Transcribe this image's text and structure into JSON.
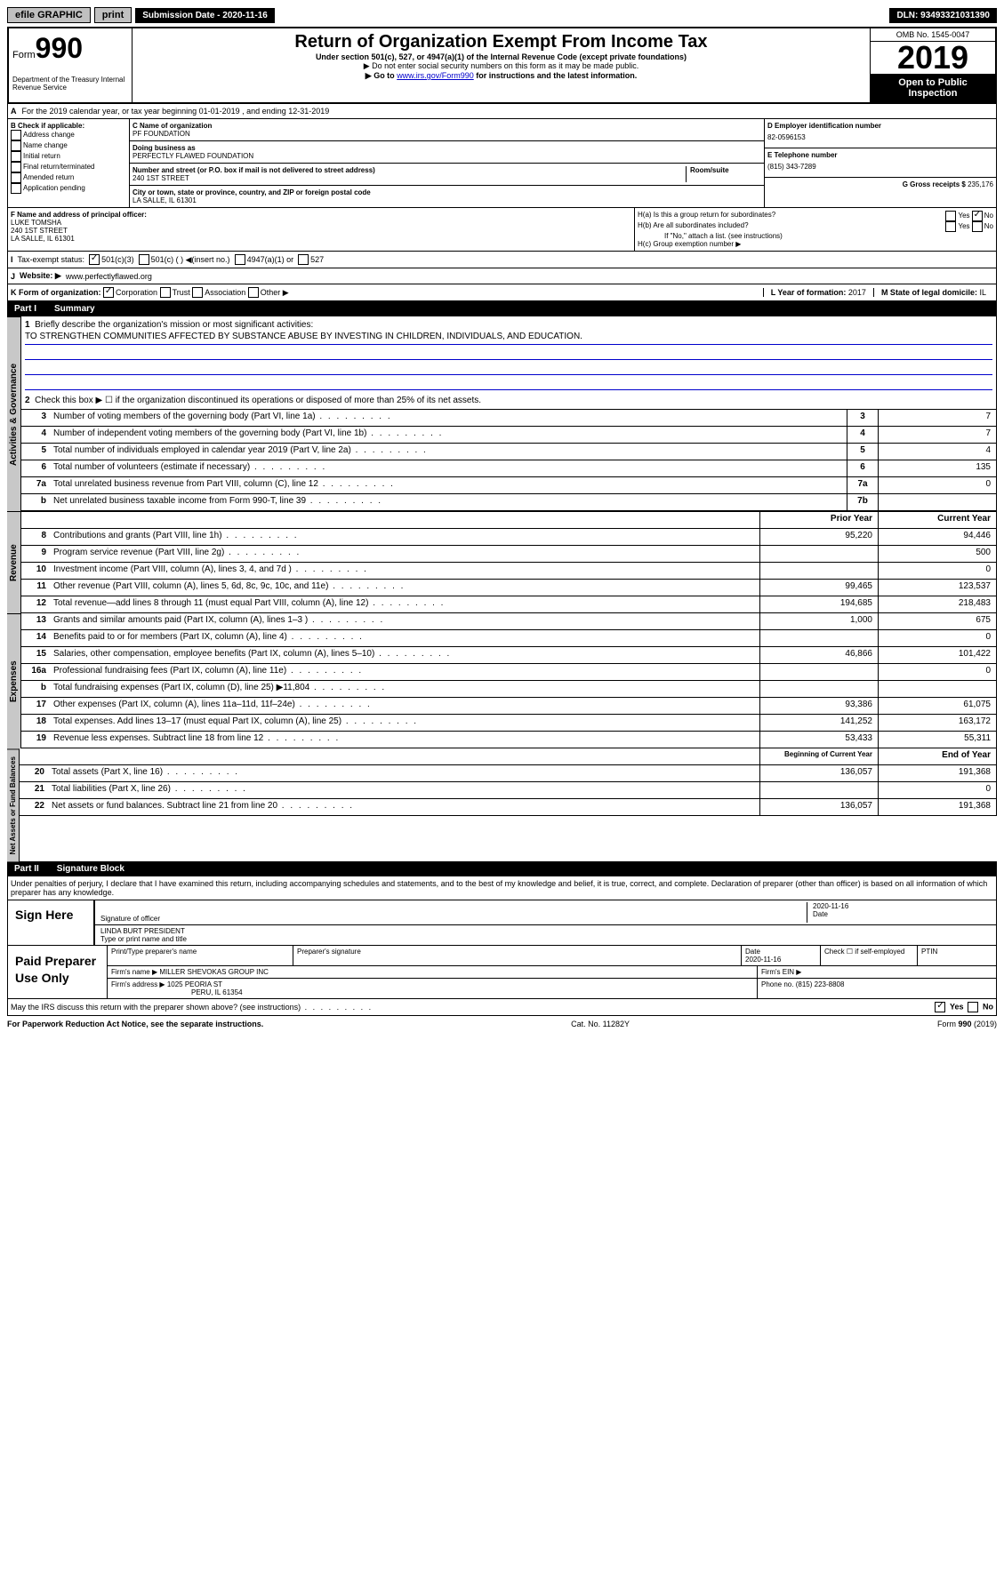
{
  "topbar": {
    "efile": "efile GRAPHIC",
    "print": "print",
    "submission": "Submission Date - 2020-11-16",
    "dln": "DLN: 93493321031390"
  },
  "header": {
    "form_label": "Form",
    "form_number": "990",
    "dept": "Department of the Treasury Internal Revenue Service",
    "title": "Return of Organization Exempt From Income Tax",
    "subtitle": "Under section 501(c), 527, or 4947(a)(1) of the Internal Revenue Code (except private foundations)",
    "notice1": "▶ Do not enter social security numbers on this form as it may be made public.",
    "notice2_pre": "▶ Go to ",
    "notice2_link": "www.irs.gov/Form990",
    "notice2_post": " for instructions and the latest information.",
    "omb": "OMB No. 1545-0047",
    "year": "2019",
    "open": "Open to Public Inspection"
  },
  "section_a": {
    "text": "For the 2019 calendar year, or tax year beginning 01-01-2019   , and ending 12-31-2019"
  },
  "section_b": {
    "label": "B Check if applicable:",
    "opts": [
      "Address change",
      "Name change",
      "Initial return",
      "Final return/terminated",
      "Amended return",
      "Application pending"
    ]
  },
  "section_c": {
    "name_label": "C Name of organization",
    "name": "PF FOUNDATION",
    "dba_label": "Doing business as",
    "dba": "PERFECTLY FLAWED FOUNDATION",
    "addr_label": "Number and street (or P.O. box if mail is not delivered to street address)",
    "room_label": "Room/suite",
    "addr": "240 1ST STREET",
    "city_label": "City or town, state or province, country, and ZIP or foreign postal code",
    "city": "LA SALLE, IL  61301"
  },
  "section_d": {
    "ein_label": "D Employer identification number",
    "ein": "82-0596153",
    "phone_label": "E Telephone number",
    "phone": "(815) 343-7289",
    "gross_label": "G Gross receipts $",
    "gross": "235,176"
  },
  "section_f": {
    "label": "F  Name and address of principal officer:",
    "name": "LUKE TOMSHA",
    "addr1": "240 1ST STREET",
    "addr2": "LA SALLE, IL  61301"
  },
  "section_h": {
    "ha_label": "H(a)  Is this a group return for subordinates?",
    "hb_label": "H(b)  Are all subordinates included?",
    "hb_note": "If \"No,\" attach a list. (see instructions)",
    "hc_label": "H(c)  Group exemption number ▶"
  },
  "tax_exempt": {
    "label": "Tax-exempt status:",
    "opt1": "501(c)(3)",
    "opt2": "501(c) (  ) ◀(insert no.)",
    "opt3": "4947(a)(1) or",
    "opt4": "527"
  },
  "website": {
    "label": "Website: ▶",
    "url": "www.perfectlyflawed.org"
  },
  "section_k": {
    "label": "K Form of organization:",
    "opts": [
      "Corporation",
      "Trust",
      "Association",
      "Other ▶"
    ]
  },
  "section_l": {
    "label": "L Year of formation:",
    "val": "2017"
  },
  "section_m": {
    "label": "M State of legal domicile:",
    "val": "IL"
  },
  "part1": {
    "label": "Part I",
    "title": "Summary"
  },
  "summary": {
    "line1_label": "Briefly describe the organization's mission or most significant activities:",
    "line1_val": "TO STRENGTHEN COMMUNITIES AFFECTED BY SUBSTANCE ABUSE BY INVESTING IN CHILDREN, INDIVIDUALS, AND EDUCATION.",
    "line2": "Check this box ▶ ☐  if the organization discontinued its operations or disposed of more than 25% of its net assets.",
    "rows_top": [
      {
        "n": "3",
        "d": "Number of voting members of the governing body (Part VI, line 1a)",
        "box": "3",
        "v": "7"
      },
      {
        "n": "4",
        "d": "Number of independent voting members of the governing body (Part VI, line 1b)",
        "box": "4",
        "v": "7"
      },
      {
        "n": "5",
        "d": "Total number of individuals employed in calendar year 2019 (Part V, line 2a)",
        "box": "5",
        "v": "4"
      },
      {
        "n": "6",
        "d": "Total number of volunteers (estimate if necessary)",
        "box": "6",
        "v": "135"
      },
      {
        "n": "7a",
        "d": "Total unrelated business revenue from Part VIII, column (C), line 12",
        "box": "7a",
        "v": "0"
      },
      {
        "n": "b",
        "d": "Net unrelated business taxable income from Form 990-T, line 39",
        "box": "7b",
        "v": ""
      }
    ],
    "prior_label": "Prior Year",
    "current_label": "Current Year",
    "rows_rev": [
      {
        "n": "8",
        "d": "Contributions and grants (Part VIII, line 1h)",
        "p": "95,220",
        "c": "94,446"
      },
      {
        "n": "9",
        "d": "Program service revenue (Part VIII, line 2g)",
        "p": "",
        "c": "500"
      },
      {
        "n": "10",
        "d": "Investment income (Part VIII, column (A), lines 3, 4, and 7d )",
        "p": "",
        "c": "0"
      },
      {
        "n": "11",
        "d": "Other revenue (Part VIII, column (A), lines 5, 6d, 8c, 9c, 10c, and 11e)",
        "p": "99,465",
        "c": "123,537"
      },
      {
        "n": "12",
        "d": "Total revenue—add lines 8 through 11 (must equal Part VIII, column (A), line 12)",
        "p": "194,685",
        "c": "218,483"
      }
    ],
    "rows_exp": [
      {
        "n": "13",
        "d": "Grants and similar amounts paid (Part IX, column (A), lines 1–3 )",
        "p": "1,000",
        "c": "675"
      },
      {
        "n": "14",
        "d": "Benefits paid to or for members (Part IX, column (A), line 4)",
        "p": "",
        "c": "0"
      },
      {
        "n": "15",
        "d": "Salaries, other compensation, employee benefits (Part IX, column (A), lines 5–10)",
        "p": "46,866",
        "c": "101,422"
      },
      {
        "n": "16a",
        "d": "Professional fundraising fees (Part IX, column (A), line 11e)",
        "p": "",
        "c": "0"
      },
      {
        "n": "b",
        "d": "Total fundraising expenses (Part IX, column (D), line 25) ▶11,804",
        "p": "",
        "c": ""
      },
      {
        "n": "17",
        "d": "Other expenses (Part IX, column (A), lines 11a–11d, 11f–24e)",
        "p": "93,386",
        "c": "61,075"
      },
      {
        "n": "18",
        "d": "Total expenses. Add lines 13–17 (must equal Part IX, column (A), line 25)",
        "p": "141,252",
        "c": "163,172"
      },
      {
        "n": "19",
        "d": "Revenue less expenses. Subtract line 18 from line 12",
        "p": "53,433",
        "c": "55,311"
      }
    ],
    "begin_label": "Beginning of Current Year",
    "end_label": "End of Year",
    "rows_net": [
      {
        "n": "20",
        "d": "Total assets (Part X, line 16)",
        "p": "136,057",
        "c": "191,368"
      },
      {
        "n": "21",
        "d": "Total liabilities (Part X, line 26)",
        "p": "",
        "c": "0"
      },
      {
        "n": "22",
        "d": "Net assets or fund balances. Subtract line 21 from line 20",
        "p": "136,057",
        "c": "191,368"
      }
    ]
  },
  "vert_labels": {
    "gov": "Activities & Governance",
    "rev": "Revenue",
    "exp": "Expenses",
    "net": "Net Assets or Fund Balances"
  },
  "part2": {
    "label": "Part II",
    "title": "Signature Block",
    "declaration": "Under penalties of perjury, I declare that I have examined this return, including accompanying schedules and statements, and to the best of my knowledge and belief, it is true, correct, and complete. Declaration of preparer (other than officer) is based on all information of which preparer has any knowledge."
  },
  "sign": {
    "label": "Sign Here",
    "sig_label": "Signature of officer",
    "date": "2020-11-16",
    "date_label": "Date",
    "name": "LINDA BURT PRESIDENT",
    "name_label": "Type or print name and title"
  },
  "preparer": {
    "label": "Paid Preparer Use Only",
    "name_label": "Print/Type preparer's name",
    "sig_label": "Preparer's signature",
    "date_label": "Date",
    "date": "2020-11-16",
    "check_label": "Check ☐ if self-employed",
    "ptin_label": "PTIN",
    "firm_label": "Firm's name    ▶",
    "firm": "MILLER SHEVOKAS GROUP INC",
    "ein_label": "Firm's EIN ▶",
    "addr_label": "Firm's address ▶",
    "addr1": "1025 PEORIA ST",
    "addr2": "PERU, IL  61354",
    "phone_label": "Phone no.",
    "phone": "(815) 223-8808"
  },
  "footer": {
    "q": "May the IRS discuss this return with the preparer shown above? (see instructions)",
    "yes": "Yes",
    "no": "No",
    "notice": "For Paperwork Reduction Act Notice, see the separate instructions.",
    "cat": "Cat. No. 11282Y",
    "form": "Form 990 (2019)"
  }
}
